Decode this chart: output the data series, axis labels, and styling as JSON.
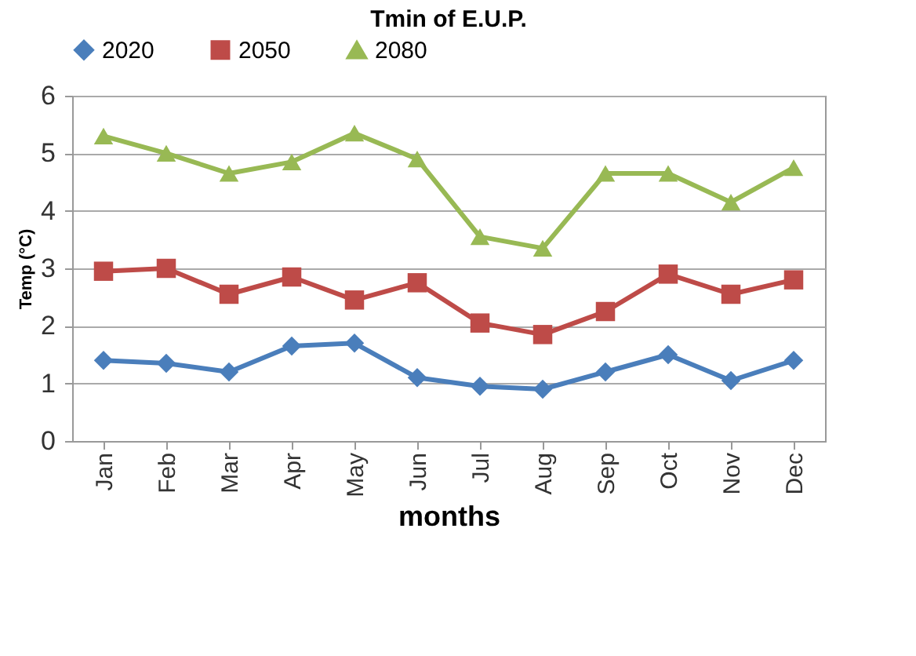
{
  "chart_data": {
    "type": "line",
    "title": "Tmin of E.U.P.",
    "xlabel": "months",
    "ylabel": "Temp (°C)",
    "categories": [
      "Jan",
      "Feb",
      "Mar",
      "Apr",
      "May",
      "Jun",
      "Jul",
      "Aug",
      "Sep",
      "Oct",
      "Nov",
      "Dec"
    ],
    "series": [
      {
        "name": "2020",
        "color": "#4a7ebb",
        "marker": "diamond",
        "values": [
          1.4,
          1.35,
          1.2,
          1.65,
          1.7,
          1.1,
          0.95,
          0.9,
          1.2,
          1.5,
          1.05,
          1.4
        ]
      },
      {
        "name": "2050",
        "color": "#be4b48",
        "marker": "square",
        "values": [
          2.95,
          3.0,
          2.55,
          2.85,
          2.45,
          2.75,
          2.05,
          1.85,
          2.25,
          2.9,
          2.55,
          2.8
        ]
      },
      {
        "name": "2080",
        "color": "#98b954",
        "marker": "triangle",
        "values": [
          5.3,
          5.0,
          4.65,
          4.85,
          5.35,
          4.9,
          3.55,
          3.35,
          4.65,
          4.65,
          4.15,
          4.75
        ]
      }
    ],
    "ylim": [
      0,
      6
    ],
    "yticks": [
      0,
      1,
      2,
      3,
      4,
      5,
      6
    ],
    "grid": "y",
    "legend": "top"
  }
}
